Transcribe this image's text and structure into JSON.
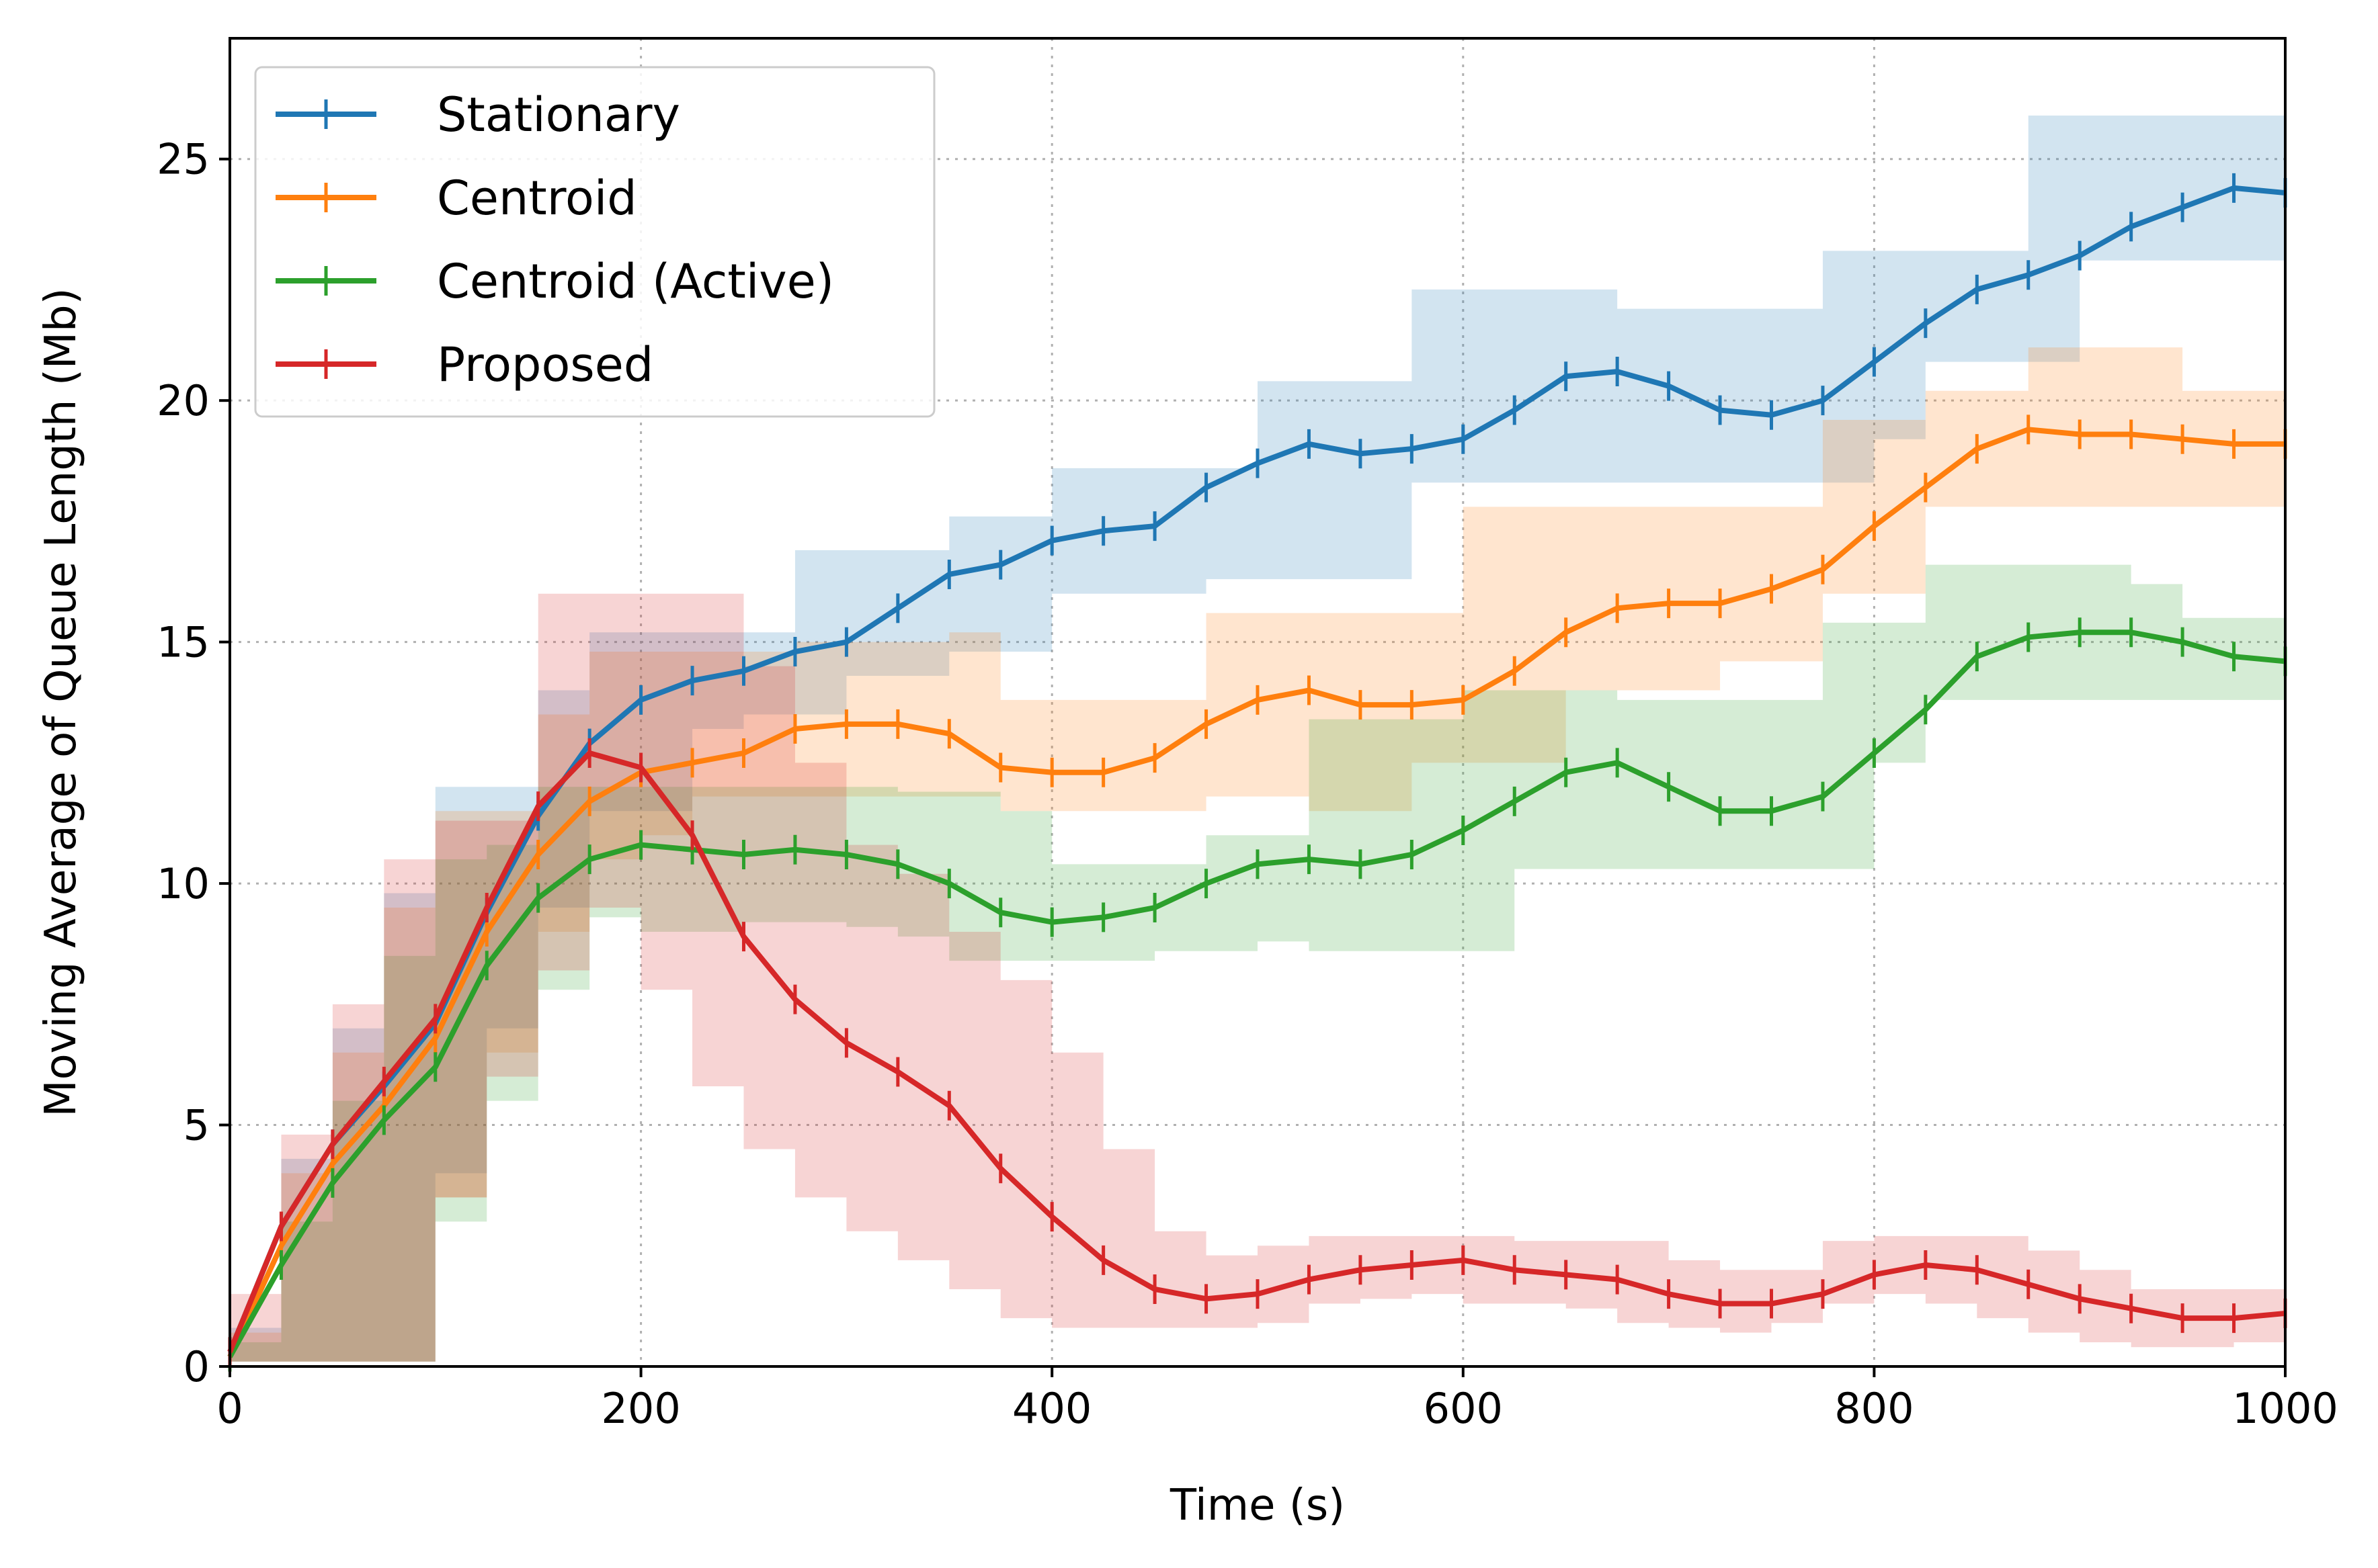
{
  "chart_data": {
    "type": "line",
    "xlabel": "Time (s)",
    "ylabel": "Moving Average of Queue Length (Mb)",
    "xlim": [
      0,
      1000
    ],
    "ylim": [
      0,
      27.5
    ],
    "xticks": [
      0,
      200,
      400,
      600,
      800,
      1000
    ],
    "yticks": [
      0,
      5,
      10,
      15,
      20,
      25
    ],
    "grid": true,
    "legend_position": "top-left",
    "x": [
      0,
      25,
      50,
      75,
      100,
      125,
      150,
      175,
      200,
      225,
      250,
      275,
      300,
      325,
      350,
      375,
      400,
      425,
      450,
      475,
      500,
      525,
      550,
      575,
      600,
      625,
      650,
      675,
      700,
      725,
      750,
      775,
      800,
      825,
      850,
      875,
      900,
      925,
      950,
      975,
      1000
    ],
    "series": [
      {
        "name": "Stationary",
        "color": "#1f77b4",
        "values": [
          0.3,
          2.9,
          4.6,
          5.8,
          7.1,
          9.4,
          11.4,
          12.9,
          13.8,
          14.2,
          14.4,
          14.8,
          15.0,
          15.7,
          16.4,
          16.6,
          17.1,
          17.3,
          17.4,
          18.2,
          18.7,
          19.1,
          18.9,
          19.0,
          19.2,
          19.8,
          20.5,
          20.6,
          20.3,
          19.8,
          19.7,
          20.0,
          20.8,
          21.6,
          22.3,
          22.6,
          23.0,
          23.6,
          24.0,
          24.4,
          24.3
        ],
        "band_upper": [
          0.8,
          4.3,
          7.0,
          9.8,
          12.0,
          12.0,
          14.0,
          15.2,
          15.2,
          15.2,
          15.2,
          16.9,
          16.9,
          16.9,
          17.6,
          17.6,
          18.6,
          18.6,
          18.6,
          18.6,
          20.4,
          20.4,
          20.4,
          22.3,
          22.3,
          22.3,
          22.3,
          21.9,
          21.9,
          21.9,
          21.9,
          23.1,
          23.1,
          23.1,
          23.1,
          25.9,
          25.9,
          25.9,
          25.9,
          25.9,
          25.9
        ],
        "band_lower": [
          0.1,
          0.1,
          0.1,
          0.1,
          0.1,
          4.0,
          7.0,
          9.5,
          11.5,
          11.5,
          13.2,
          13.5,
          13.5,
          14.3,
          14.3,
          14.8,
          14.8,
          16.0,
          16.0,
          16.0,
          16.3,
          16.3,
          16.3,
          16.3,
          18.3,
          18.3,
          18.3,
          18.3,
          18.3,
          18.3,
          18.3,
          18.3,
          18.3,
          19.2,
          20.8,
          20.8,
          20.8,
          22.9,
          22.9,
          22.9,
          22.9
        ]
      },
      {
        "name": "Centroid",
        "color": "#ff7f0e",
        "values": [
          0.2,
          2.5,
          4.2,
          5.4,
          6.8,
          9.0,
          10.6,
          11.7,
          12.3,
          12.5,
          12.7,
          13.2,
          13.3,
          13.3,
          13.1,
          12.4,
          12.3,
          12.3,
          12.6,
          13.3,
          13.8,
          14.0,
          13.7,
          13.7,
          13.8,
          14.4,
          15.2,
          15.7,
          15.8,
          15.8,
          16.1,
          16.5,
          17.4,
          18.2,
          19.0,
          19.4,
          19.3,
          19.3,
          19.2,
          19.1,
          19.1
        ],
        "band_upper": [
          0.7,
          4.0,
          6.5,
          9.5,
          11.5,
          11.5,
          13.5,
          14.8,
          14.8,
          14.8,
          14.8,
          15.0,
          15.0,
          15.0,
          15.2,
          13.8,
          13.8,
          13.8,
          13.8,
          15.6,
          15.6,
          15.6,
          15.6,
          15.6,
          17.8,
          17.8,
          17.8,
          17.8,
          17.8,
          17.8,
          17.8,
          19.6,
          19.6,
          20.2,
          20.2,
          21.1,
          21.1,
          21.1,
          20.2,
          20.2,
          20.2
        ],
        "band_lower": [
          0.1,
          0.1,
          0.1,
          0.1,
          0.1,
          3.5,
          6.5,
          9.0,
          10.5,
          11.0,
          11.8,
          11.8,
          11.8,
          11.8,
          11.8,
          11.8,
          11.5,
          11.5,
          11.5,
          11.5,
          11.8,
          11.8,
          11.5,
          11.5,
          12.5,
          12.5,
          12.5,
          14.0,
          14.0,
          14.0,
          14.6,
          14.6,
          16.0,
          16.0,
          17.8,
          17.8,
          17.8,
          17.8,
          17.8,
          17.8,
          17.8
        ]
      },
      {
        "name": "Centroid (Active)",
        "color": "#2ca02c",
        "values": [
          0.2,
          2.1,
          3.8,
          5.1,
          6.2,
          8.3,
          9.7,
          10.5,
          10.8,
          10.7,
          10.6,
          10.7,
          10.6,
          10.4,
          10.0,
          9.4,
          9.2,
          9.3,
          9.5,
          10.0,
          10.4,
          10.5,
          10.4,
          10.6,
          11.1,
          11.7,
          12.3,
          12.5,
          12.0,
          11.5,
          11.5,
          11.8,
          12.7,
          13.6,
          14.7,
          15.1,
          15.2,
          15.2,
          15.0,
          14.7,
          14.6
        ],
        "band_upper": [
          0.5,
          3.0,
          5.5,
          8.5,
          10.5,
          10.8,
          12.0,
          12.0,
          12.0,
          12.0,
          12.0,
          12.0,
          12.0,
          11.9,
          11.9,
          11.5,
          10.4,
          10.4,
          10.4,
          11.0,
          11.0,
          13.4,
          13.4,
          13.4,
          14.0,
          14.0,
          14.0,
          13.8,
          13.8,
          13.8,
          13.8,
          15.4,
          15.4,
          16.6,
          16.6,
          16.6,
          16.6,
          16.2,
          15.5,
          15.5,
          15.5
        ],
        "band_lower": [
          0.1,
          0.1,
          0.1,
          0.1,
          0.1,
          3.0,
          5.5,
          7.8,
          9.3,
          9.0,
          9.0,
          9.2,
          9.2,
          9.1,
          8.9,
          8.4,
          8.4,
          8.4,
          8.4,
          8.6,
          8.6,
          8.8,
          8.6,
          8.6,
          8.6,
          8.6,
          10.3,
          10.3,
          10.3,
          10.3,
          10.3,
          10.3,
          10.3,
          12.5,
          13.8,
          13.8,
          13.8,
          13.8,
          13.8,
          13.8,
          13.8
        ]
      },
      {
        "name": "Proposed",
        "color": "#d62728",
        "values": [
          0.3,
          2.9,
          4.6,
          5.9,
          7.2,
          9.5,
          11.6,
          12.7,
          12.4,
          11.0,
          8.9,
          7.6,
          6.7,
          6.1,
          5.4,
          4.1,
          3.1,
          2.2,
          1.6,
          1.4,
          1.5,
          1.8,
          2.0,
          2.1,
          2.2,
          2.0,
          1.9,
          1.8,
          1.5,
          1.3,
          1.3,
          1.5,
          1.9,
          2.1,
          2.0,
          1.7,
          1.4,
          1.2,
          1.0,
          1.0,
          1.1
        ],
        "band_upper": [
          1.5,
          4.8,
          7.5,
          10.5,
          11.3,
          11.3,
          16.0,
          16.0,
          16.0,
          16.0,
          14.5,
          12.5,
          10.8,
          10.2,
          9.0,
          8.0,
          6.5,
          4.5,
          2.8,
          2.3,
          2.5,
          2.7,
          2.7,
          2.7,
          2.7,
          2.6,
          2.6,
          2.6,
          2.2,
          2.0,
          2.0,
          2.6,
          2.7,
          2.7,
          2.7,
          2.4,
          2.0,
          1.6,
          1.6,
          1.6,
          1.8
        ],
        "band_lower": [
          0.1,
          0.1,
          0.1,
          0.1,
          0.1,
          3.5,
          6.0,
          8.2,
          9.5,
          7.8,
          5.8,
          4.5,
          3.5,
          2.8,
          2.2,
          1.6,
          1.0,
          0.8,
          0.8,
          0.8,
          0.8,
          0.9,
          1.3,
          1.4,
          1.5,
          1.3,
          1.3,
          1.2,
          0.9,
          0.8,
          0.7,
          0.9,
          1.3,
          1.5,
          1.3,
          1.0,
          0.7,
          0.5,
          0.4,
          0.4,
          0.5
        ]
      }
    ]
  }
}
